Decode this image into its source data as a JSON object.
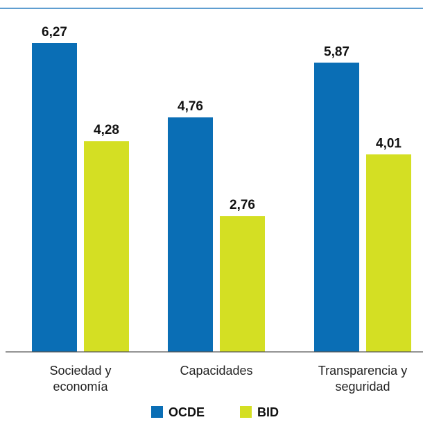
{
  "chart_data": {
    "type": "bar",
    "title": "",
    "xlabel": "",
    "ylabel": "",
    "categories": [
      [
        "Sociedad y",
        "economía"
      ],
      [
        "Capacidades"
      ],
      [
        "Transparencia y",
        "seguridad"
      ]
    ],
    "series": [
      {
        "name": "OCDE",
        "color": "#0a6eb5",
        "values": [
          6.27,
          4.76,
          5.87
        ]
      },
      {
        "name": "BID",
        "color": "#d4df23",
        "values": [
          4.28,
          2.76,
          4.01
        ]
      }
    ],
    "value_labels": [
      [
        "6,27",
        "4,76",
        "5,87"
      ],
      [
        "4,28",
        "2,76",
        "4,01"
      ]
    ],
    "ylim": [
      0,
      6.27
    ],
    "grid": false,
    "legend_position": "bottom-center",
    "top_rule_color": "#2a7fc1"
  }
}
